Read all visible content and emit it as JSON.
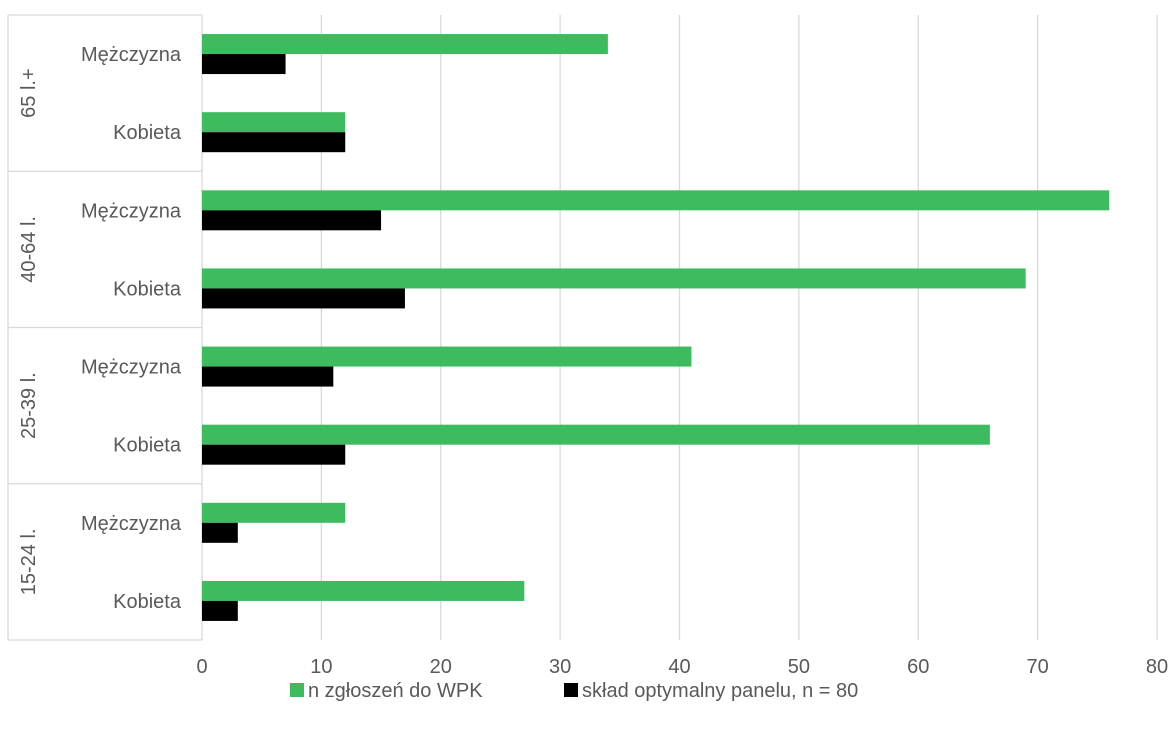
{
  "chart_data": {
    "type": "bar",
    "orientation": "horizontal",
    "groups": [
      {
        "label": "65 l.+",
        "categories": [
          "Mężczyzna",
          "Kobieta"
        ]
      },
      {
        "label": "40-64 l.",
        "categories": [
          "Mężczyzna",
          "Kobieta"
        ]
      },
      {
        "label": "25-39 l.",
        "categories": [
          "Mężczyzna",
          "Kobieta"
        ]
      },
      {
        "label": "15-24 l.",
        "categories": [
          "Mężczyzna",
          "Kobieta"
        ]
      }
    ],
    "series": [
      {
        "name": "n zgłoszeń do WPK",
        "color": "#3fbb5f",
        "values": [
          34,
          12,
          76,
          69,
          41,
          66,
          12,
          27
        ]
      },
      {
        "name": "skład optymalny panelu, n = 80",
        "color": "#000000",
        "values": [
          7,
          12,
          15,
          17,
          11,
          12,
          3,
          3
        ]
      }
    ],
    "xlim": [
      0,
      80
    ],
    "xticks": [
      0,
      10,
      20,
      30,
      40,
      50,
      60,
      70,
      80
    ],
    "grid": "vertical",
    "legend": "bottom",
    "title": "",
    "xlabel": "",
    "ylabel": ""
  }
}
